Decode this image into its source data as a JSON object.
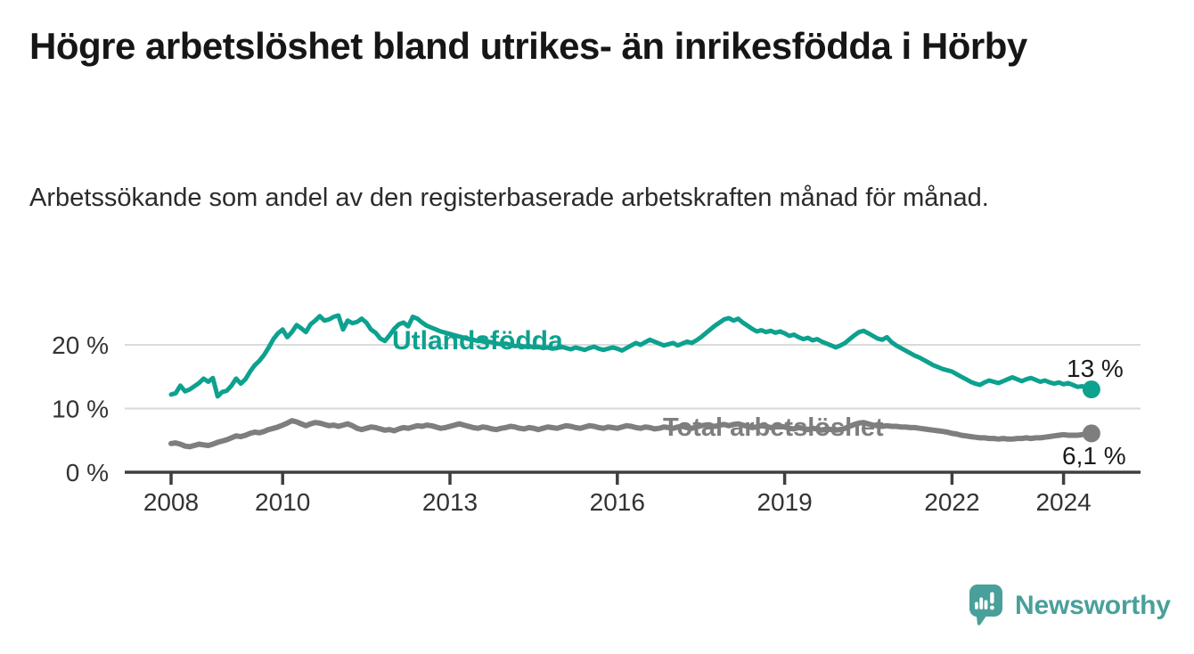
{
  "header": {
    "title": "Högre arbetslöshet bland utrikes- än inrikesfödda i Hörby",
    "subtitle": "Arbetssökande som andel av den registerbaserade arbetskraften månad för månad."
  },
  "chart_data": {
    "type": "line",
    "title": "Högre arbetslöshet bland utrikes- än inrikesfödda i Hörby",
    "subtitle": "Arbetssökande som andel av den registerbaserade arbetskraften månad för månad.",
    "unit": "%",
    "grid": "horizontal-only",
    "legend_position": "inline-on-lines",
    "xlabel": "",
    "ylabel": "",
    "ylim": [
      0,
      26
    ],
    "x_range_years": [
      2008,
      2024.58
    ],
    "y_ticks": [
      {
        "value": 0,
        "label": "0 %"
      },
      {
        "value": 10,
        "label": "10 %"
      },
      {
        "value": 20,
        "label": "20 %"
      }
    ],
    "x_ticks": [
      {
        "value": 2008,
        "label": "2008"
      },
      {
        "value": 2010,
        "label": "2010"
      },
      {
        "value": 2013,
        "label": "2013"
      },
      {
        "value": 2016,
        "label": "2016"
      },
      {
        "value": 2019,
        "label": "2019"
      },
      {
        "value": 2022,
        "label": "2022"
      },
      {
        "value": 2024,
        "label": "2024"
      }
    ],
    "series": [
      {
        "name": "Utlandsfödda",
        "color": "#0da18f",
        "end_label": "13 %",
        "end_value": 13.0,
        "start_month": "2008-01",
        "frequency": "monthly",
        "values": [
          12.2,
          12.4,
          13.6,
          12.7,
          13.0,
          13.5,
          14.0,
          14.7,
          14.2,
          14.8,
          11.9,
          12.6,
          12.8,
          13.6,
          14.7,
          13.9,
          14.6,
          15.8,
          16.8,
          17.5,
          18.4,
          19.6,
          20.9,
          21.8,
          22.4,
          21.2,
          22.0,
          23.1,
          22.6,
          22.0,
          23.2,
          23.8,
          24.5,
          23.8,
          24.0,
          24.4,
          24.6,
          22.4,
          23.8,
          23.4,
          23.6,
          24.1,
          23.5,
          22.4,
          21.9,
          21.0,
          20.6,
          21.5,
          22.5,
          23.2,
          23.5,
          22.9,
          24.4,
          24.1,
          23.5,
          23.0,
          22.7,
          22.4,
          22.1,
          21.9,
          21.7,
          21.5,
          21.3,
          21.1,
          20.9,
          20.8,
          20.6,
          20.8,
          20.5,
          20.4,
          20.2,
          20.1,
          20.2,
          20.0,
          19.8,
          19.9,
          19.7,
          19.8,
          19.6,
          19.7,
          19.5,
          19.6,
          19.4,
          19.5,
          19.7,
          19.5,
          19.3,
          19.6,
          19.4,
          19.2,
          19.5,
          19.7,
          19.4,
          19.2,
          19.4,
          19.6,
          19.4,
          19.1,
          19.5,
          19.9,
          20.3,
          20.0,
          20.4,
          20.8,
          20.5,
          20.2,
          19.9,
          20.1,
          20.3,
          19.9,
          20.2,
          20.5,
          20.3,
          20.7,
          21.2,
          21.8,
          22.4,
          23.0,
          23.5,
          24.0,
          24.2,
          23.8,
          24.1,
          23.5,
          23.0,
          22.5,
          22.1,
          22.3,
          22.0,
          22.2,
          21.9,
          22.1,
          21.8,
          21.4,
          21.6,
          21.2,
          20.9,
          21.1,
          20.7,
          20.9,
          20.5,
          20.2,
          19.9,
          19.6,
          19.9,
          20.3,
          20.9,
          21.5,
          22.0,
          22.2,
          21.8,
          21.4,
          21.0,
          20.8,
          21.2,
          20.4,
          19.9,
          19.5,
          19.1,
          18.7,
          18.3,
          18.0,
          17.6,
          17.2,
          16.8,
          16.5,
          16.2,
          16.0,
          15.8,
          15.4,
          15.0,
          14.6,
          14.2,
          13.9,
          13.7,
          14.1,
          14.4,
          14.2,
          14.0,
          14.3,
          14.6,
          14.9,
          14.6,
          14.3,
          14.6,
          14.8,
          14.5,
          14.2,
          14.4,
          14.1,
          13.9,
          14.1,
          13.8,
          14.0,
          13.7,
          13.4,
          13.5,
          13.2,
          13.0
        ]
      },
      {
        "name": "Total arbetslöshet",
        "color": "#7e7e7e",
        "end_label": "6,1 %",
        "end_value": 6.1,
        "start_month": "2008-01",
        "frequency": "monthly",
        "values": [
          4.5,
          4.6,
          4.4,
          4.1,
          4.0,
          4.2,
          4.4,
          4.3,
          4.2,
          4.4,
          4.7,
          4.9,
          5.1,
          5.4,
          5.7,
          5.6,
          5.8,
          6.1,
          6.3,
          6.2,
          6.4,
          6.7,
          6.9,
          7.1,
          7.4,
          7.7,
          8.1,
          7.9,
          7.6,
          7.3,
          7.6,
          7.8,
          7.7,
          7.5,
          7.3,
          7.4,
          7.2,
          7.4,
          7.6,
          7.3,
          6.9,
          6.7,
          6.9,
          7.1,
          7.0,
          6.8,
          6.6,
          6.7,
          6.5,
          6.8,
          7.0,
          6.9,
          7.1,
          7.3,
          7.2,
          7.4,
          7.3,
          7.1,
          6.9,
          7.0,
          7.2,
          7.4,
          7.6,
          7.4,
          7.2,
          7.0,
          6.9,
          7.1,
          7.0,
          6.8,
          6.7,
          6.9,
          7.0,
          7.2,
          7.1,
          6.9,
          6.8,
          7.0,
          6.9,
          6.7,
          6.9,
          7.1,
          7.0,
          6.9,
          7.1,
          7.3,
          7.2,
          7.0,
          6.9,
          7.1,
          7.3,
          7.2,
          7.0,
          6.9,
          7.1,
          7.0,
          6.9,
          7.1,
          7.3,
          7.2,
          7.0,
          6.9,
          7.1,
          7.0,
          6.8,
          6.9,
          7.1,
          7.0,
          6.9,
          7.1,
          7.2,
          7.0,
          6.9,
          7.1,
          7.3,
          7.4,
          7.3,
          7.2,
          7.4,
          7.5,
          7.3,
          7.5,
          7.6,
          7.4,
          7.2,
          7.0,
          7.1,
          7.3,
          7.2,
          7.0,
          7.1,
          7.2,
          7.1,
          6.9,
          6.8,
          7.0,
          6.9,
          6.7,
          6.9,
          6.8,
          6.6,
          6.8,
          6.7,
          6.6,
          6.7,
          6.9,
          7.2,
          7.5,
          7.7,
          7.8,
          7.6,
          7.4,
          7.3,
          7.2,
          7.3,
          7.2,
          7.2,
          7.1,
          7.1,
          7.0,
          7.0,
          6.9,
          6.8,
          6.7,
          6.6,
          6.5,
          6.4,
          6.3,
          6.1,
          6.0,
          5.8,
          5.7,
          5.6,
          5.5,
          5.4,
          5.4,
          5.3,
          5.3,
          5.2,
          5.3,
          5.2,
          5.2,
          5.3,
          5.3,
          5.4,
          5.3,
          5.4,
          5.4,
          5.5,
          5.6,
          5.7,
          5.8,
          5.9,
          5.8,
          5.8,
          5.8,
          5.9,
          6.0,
          6.1
        ]
      }
    ],
    "axis_color": "#3f3f3f",
    "gridline_color": "#dadada",
    "tick_label_color": "#333333"
  },
  "branding": {
    "logo_text": "Newsworthy",
    "logo_color": "#49a09a",
    "logo_icon": "speech-bubble-bar-chart-icon"
  }
}
